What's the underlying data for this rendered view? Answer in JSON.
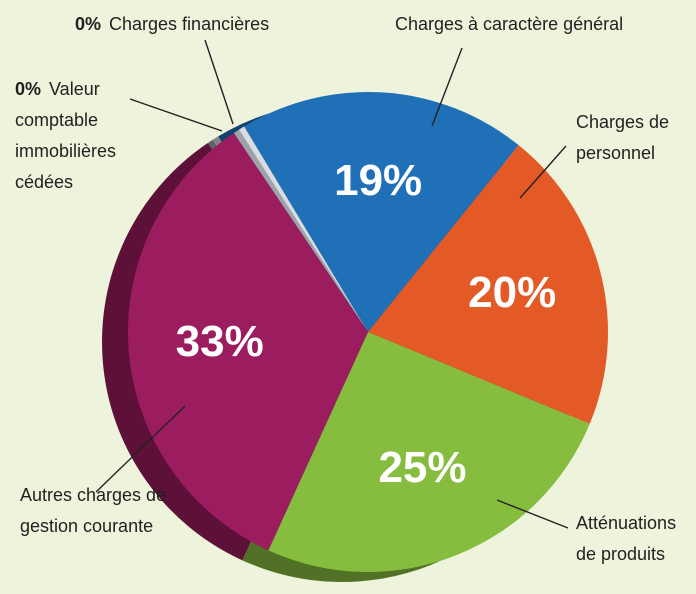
{
  "chart_data": {
    "type": "pie",
    "categories": [
      "Valeur comptable immobilières cédées",
      "Charges financières",
      "Charges à caractère général",
      "Charges de personnel",
      "Atténuations de produits",
      "Autres charges de gestion courante"
    ],
    "values": [
      0.4,
      0.4,
      19,
      20,
      25,
      33
    ],
    "value_labels": [
      "0%",
      "0%",
      "19%",
      "20%",
      "25%",
      "33%"
    ],
    "colors": [
      "#9ea3a8",
      "#d9dce2",
      "#1f70b6",
      "#e35a26",
      "#86bd3f",
      "#9b1c5f"
    ]
  }
}
